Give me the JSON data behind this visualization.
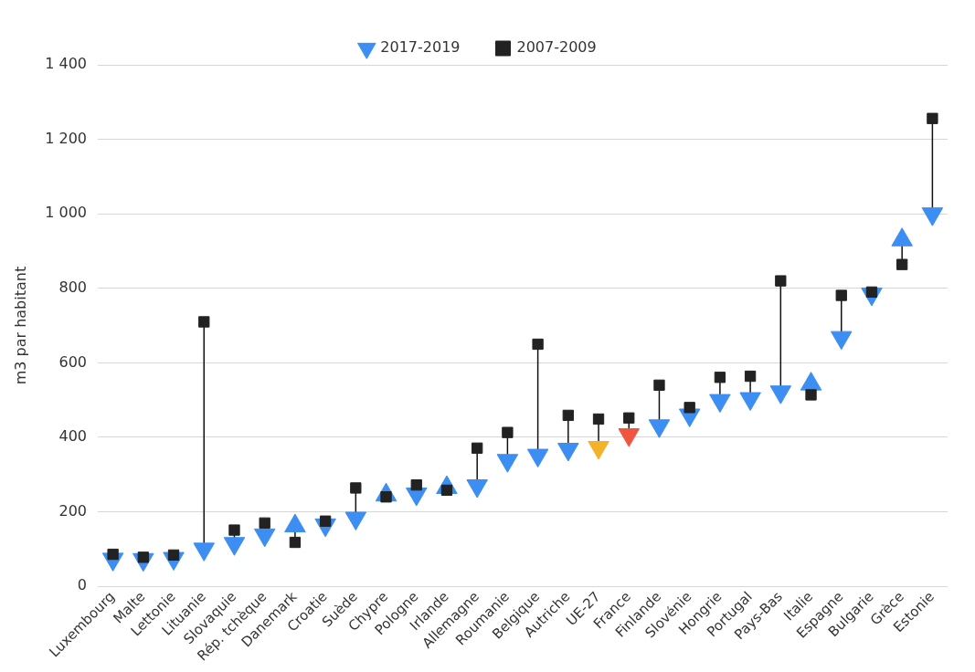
{
  "chart_data": {
    "type": "scatter",
    "ylabel": "m3 par habitant",
    "legend": "top",
    "grid": "y",
    "categories": [
      "Luxembourg",
      "Malte",
      "Lettonie",
      "Lituanie",
      "Slovaquie",
      "Rép. tchèque",
      "Danemark",
      "Croatie",
      "Suède",
      "Chypre",
      "Pologne",
      "Irlande",
      "Allemagne",
      "Roumanie",
      "Belgique",
      "Autriche",
      "UE-27",
      "France",
      "Finlande",
      "Slovénie",
      "Hongrie",
      "Portugal",
      "Pays-Bas",
      "Italie",
      "Espagne",
      "Bulgarie",
      "Grèce",
      "Estonie"
    ],
    "ylim": [
      0,
      1400
    ],
    "yticks": [
      0,
      200,
      400,
      600,
      800,
      {
        "value": 1000,
        "label": "1 000"
      },
      {
        "value": 1200,
        "label": "1 200"
      },
      {
        "value": 1400,
        "label": "1 400"
      }
    ],
    "series": [
      {
        "name": "2017-2019",
        "marker": "triangle",
        "color": "#3d8ef2",
        "colors": [
          "#3d8ef2",
          "#3d8ef2",
          "#3d8ef2",
          "#3d8ef2",
          "#3d8ef2",
          "#3d8ef2",
          "#3d8ef2",
          "#3d8ef2",
          "#3d8ef2",
          "#3d8ef2",
          "#3d8ef2",
          "#3d8ef2",
          "#3d8ef2",
          "#3d8ef2",
          "#3d8ef2",
          "#3d8ef2",
          "#f2b32a",
          "#f0553f",
          "#3d8ef2",
          "#3d8ef2",
          "#3d8ef2",
          "#3d8ef2",
          "#3d8ef2",
          "#3d8ef2",
          "#3d8ef2",
          "#3d8ef2",
          "#3d8ef2",
          "#3d8ef2"
        ],
        "values": [
          73,
          72,
          75,
          100,
          115,
          138,
          162,
          165,
          183,
          245,
          248,
          265,
          270,
          338,
          352,
          368,
          373,
          407,
          431,
          460,
          499,
          504,
          522,
          543,
          668,
          785,
          930,
          1000
        ]
      },
      {
        "name": "2007-2009",
        "marker": "square",
        "color": "#222222",
        "values": [
          86,
          78,
          84,
          710,
          151,
          170,
          118,
          175,
          264,
          240,
          272,
          258,
          371,
          413,
          650,
          459,
          449,
          452,
          540,
          480,
          561,
          564,
          820,
          514,
          781,
          790,
          864,
          1256
        ]
      }
    ]
  }
}
